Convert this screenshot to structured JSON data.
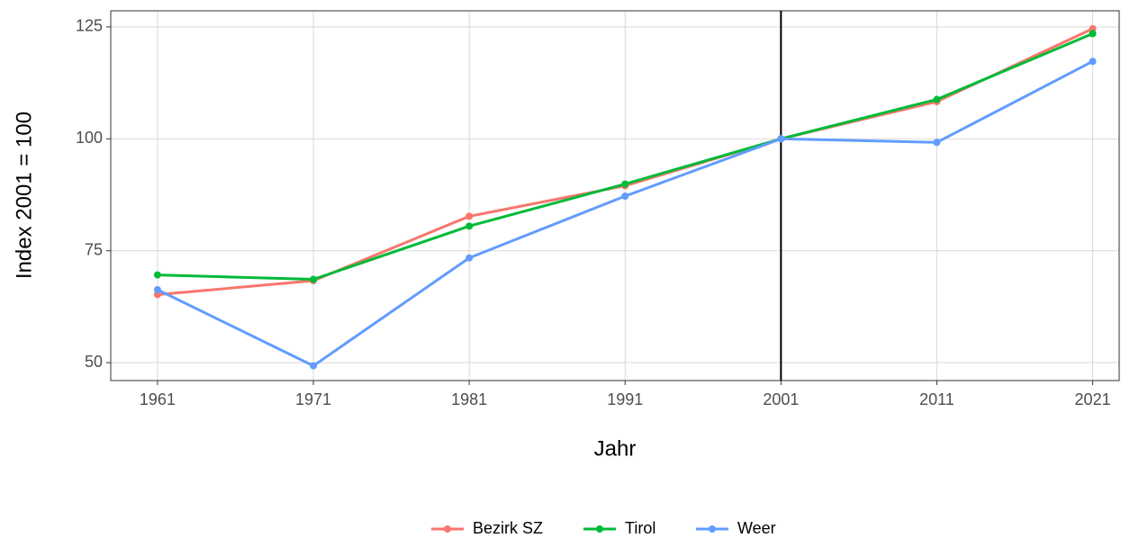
{
  "chart_data": {
    "type": "line",
    "x_label": "Jahr",
    "y_label": "Index 2001 = 100",
    "x": [
      1961,
      1971,
      1981,
      1991,
      2001,
      2011,
      2021
    ],
    "series": [
      {
        "name": "Bezirk SZ",
        "color": "#F8766D",
        "values": [
          65.2,
          68.3,
          82.7,
          89.5,
          100,
          108.3,
          124.6
        ]
      },
      {
        "name": "Tirol",
        "color": "#00BA38",
        "values": [
          69.6,
          68.6,
          80.5,
          89.9,
          100,
          108.8,
          123.5
        ]
      },
      {
        "name": "Weer",
        "color": "#619CFF",
        "values": [
          66.3,
          49.3,
          73.4,
          87.2,
          100,
          99.2,
          117.3
        ]
      }
    ],
    "xlim": [
      1958,
      2022.7
    ],
    "xticks": [
      1961,
      1971,
      1981,
      1991,
      2001,
      2011,
      2021
    ],
    "ylim": [
      46,
      128.6
    ],
    "yticks": [
      50,
      75,
      100,
      125
    ],
    "vline": 2001,
    "grid": true,
    "legend": "bottom"
  }
}
